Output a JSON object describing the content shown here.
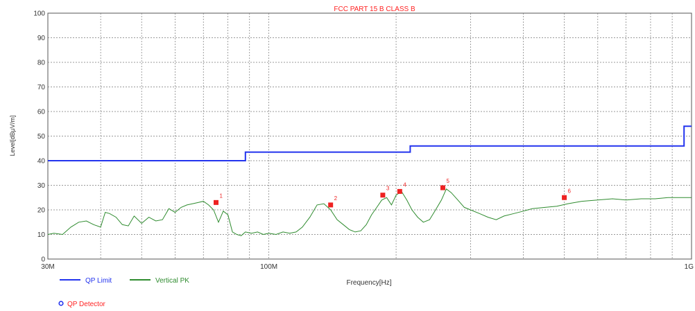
{
  "chart_data": {
    "type": "line",
    "title": "FCC PART 15 B CLASS B",
    "xlabel": "Frequency[Hz]",
    "ylabel": "Level[dBμV/m]",
    "x_scale": "log",
    "x_unit": "Hz",
    "xlim": [
      30000000,
      1000000000
    ],
    "ylim": [
      0,
      100
    ],
    "y_ticks": [
      0,
      10,
      20,
      30,
      40,
      50,
      60,
      70,
      80,
      90,
      100
    ],
    "x_tick_labels": [
      {
        "value": 30000000,
        "label": "30M"
      },
      {
        "value": 100000000,
        "label": "100M"
      },
      {
        "value": 1000000000,
        "label": "1G"
      }
    ],
    "x_gridlines": [
      30000000,
      40000000,
      50000000,
      60000000,
      70000000,
      80000000,
      90000000,
      100000000,
      200000000,
      300000000,
      400000000,
      500000000,
      600000000,
      700000000,
      800000000,
      900000000,
      1000000000
    ],
    "grid": true,
    "legend_position": "bottom-left",
    "colors": {
      "limit": "#2233ee",
      "vertical_pk": "#2e8b2e",
      "marker": "#ee2222",
      "title": "#ff2222",
      "qp_detector": "#2233ee"
    },
    "series": [
      {
        "name": "QP Limit",
        "color": "#2233ee",
        "x": [
          30000000,
          88000000,
          88000000,
          216000000,
          216000000,
          960000000,
          960000000,
          1000000000
        ],
        "y": [
          40,
          40,
          43.5,
          43.5,
          46,
          46,
          54,
          54
        ]
      },
      {
        "name": "Vertical PK",
        "color": "#2e8b2e",
        "x": [
          30000000,
          31000000,
          32500000,
          34000000,
          35500000,
          37000000,
          38500000,
          40000000,
          41000000,
          42000000,
          43500000,
          45000000,
          46500000,
          48000000,
          50000000,
          52000000,
          54000000,
          56000000,
          58000000,
          60000000,
          62000000,
          64000000,
          66000000,
          68000000,
          70000000,
          72000000,
          74000000,
          76000000,
          78000000,
          80000000,
          82000000,
          84000000,
          86000000,
          88000000,
          91000000,
          94000000,
          97000000,
          100000000,
          104000000,
          108000000,
          112000000,
          116000000,
          120000000,
          125000000,
          130000000,
          135000000,
          140000000,
          145000000,
          150000000,
          155000000,
          160000000,
          165000000,
          170000000,
          175000000,
          180000000,
          185000000,
          190000000,
          195000000,
          200000000,
          206000000,
          212000000,
          218000000,
          225000000,
          232000000,
          240000000,
          248000000,
          256000000,
          263000000,
          270000000,
          280000000,
          290000000,
          300000000,
          315000000,
          330000000,
          345000000,
          360000000,
          380000000,
          400000000,
          420000000,
          450000000,
          480000000,
          510000000,
          550000000,
          600000000,
          650000000,
          700000000,
          760000000,
          820000000,
          880000000,
          940000000,
          1000000000
        ],
        "y": [
          10,
          10.5,
          10,
          13,
          15,
          15.5,
          14,
          13,
          19,
          18.5,
          17,
          14,
          13.5,
          17.5,
          14.5,
          17,
          15.5,
          16,
          20.5,
          19,
          21,
          22,
          22.5,
          23,
          23.5,
          22,
          20,
          15,
          19.5,
          18,
          11,
          10,
          9.5,
          11,
          10.5,
          11,
          10,
          10.5,
          10,
          11,
          10.5,
          11,
          13,
          17,
          22,
          22.5,
          20,
          16,
          14,
          12,
          11,
          11.5,
          14,
          18,
          21,
          24,
          25,
          22,
          26,
          27.5,
          24,
          20,
          17,
          15,
          16,
          20,
          24,
          28.5,
          27,
          24,
          21,
          20,
          18.5,
          17,
          16,
          17.5,
          18.5,
          19.5,
          20.5,
          21,
          21.5,
          22.5,
          23.5,
          24,
          24.5,
          24,
          24.5,
          24.5,
          25,
          25,
          25
        ]
      }
    ],
    "markers": [
      {
        "label": "1",
        "x": 75000000,
        "y": 23
      },
      {
        "label": "2",
        "x": 140000000,
        "y": 22
      },
      {
        "label": "3",
        "x": 186000000,
        "y": 26
      },
      {
        "label": "4",
        "x": 204000000,
        "y": 27.5
      },
      {
        "label": "5",
        "x": 258000000,
        "y": 29
      },
      {
        "label": "6",
        "x": 500000000,
        "y": 25
      }
    ],
    "legend": {
      "detector_label": "QP Detector"
    }
  }
}
